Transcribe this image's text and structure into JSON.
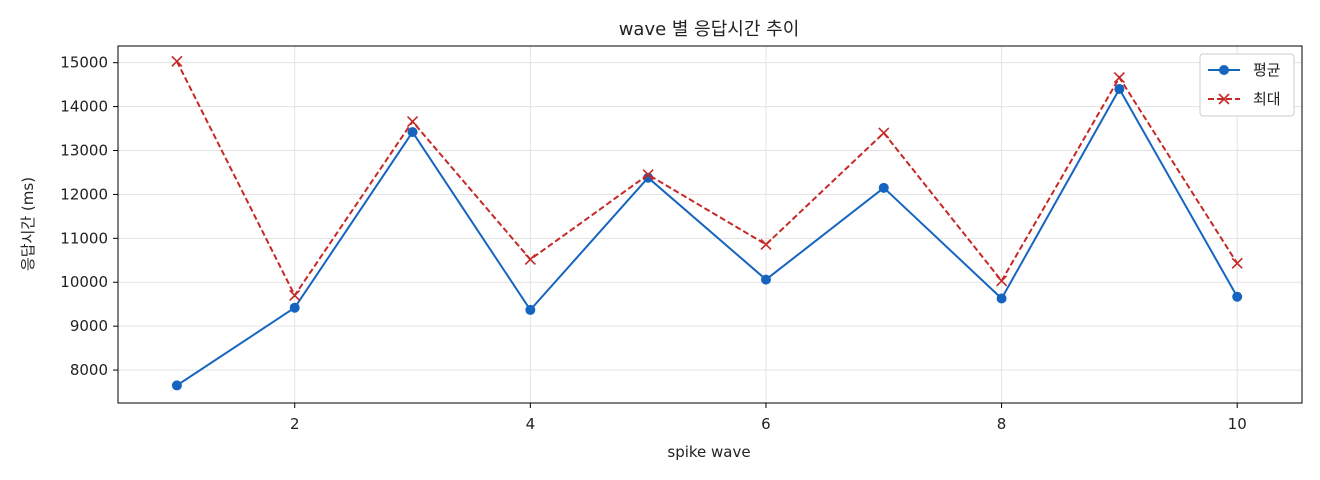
{
  "chart_data": {
    "type": "line",
    "title": "wave 별 응답시간 추이",
    "xlabel": "spike wave",
    "ylabel": "응답시간 (ms)",
    "x": [
      1,
      2,
      3,
      4,
      5,
      6,
      7,
      8,
      9,
      10
    ],
    "xlim": [
      0.5,
      10.55
    ],
    "ylim": [
      7250,
      15380
    ],
    "xticks": [
      2,
      4,
      6,
      8,
      10
    ],
    "yticks": [
      8000,
      9000,
      10000,
      11000,
      12000,
      13000,
      14000,
      15000
    ],
    "grid": true,
    "legend_position": "top-right",
    "series": [
      {
        "name": "평균",
        "color": "#1565c0",
        "line": "solid",
        "marker": "circle",
        "values": [
          7650,
          9420,
          13420,
          9370,
          12380,
          10060,
          12150,
          9630,
          14400,
          9670
        ]
      },
      {
        "name": "최대",
        "color": "#c62828",
        "line": "dashed",
        "marker": "x",
        "values": [
          15030,
          9700,
          13660,
          10520,
          12450,
          10860,
          13400,
          10030,
          14660,
          10430
        ]
      }
    ]
  }
}
